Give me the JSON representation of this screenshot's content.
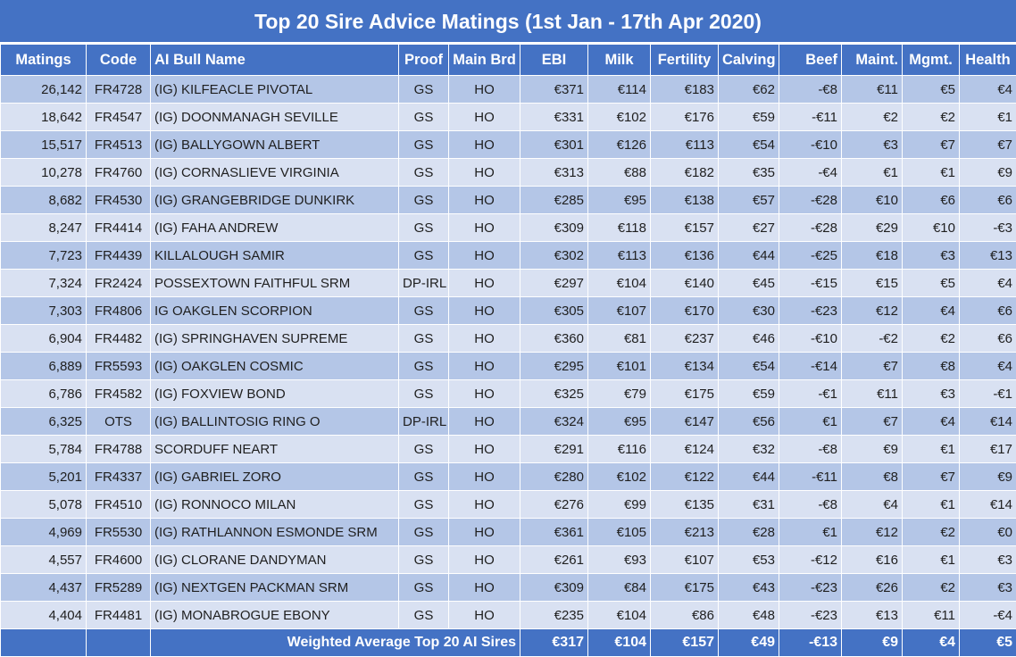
{
  "title": "Top 20 Sire Advice Matings (1st Jan - 17th Apr 2020)",
  "chart_data": {
    "type": "table",
    "columns": [
      "Matings",
      "Code",
      "AI Bull Name",
      "Proof",
      "Main Brd",
      "EBI",
      "Milk",
      "Fertility",
      "Calving",
      "Beef",
      "Maint.",
      "Mgmt.",
      "Health"
    ],
    "rows": [
      [
        "26,142",
        "FR4728",
        "(IG) KILFEACLE PIVOTAL",
        "GS",
        "HO",
        "€371",
        "€114",
        "€183",
        "€62",
        "-€8",
        "€11",
        "€5",
        "€4"
      ],
      [
        "18,642",
        "FR4547",
        "(IG) DOONMANAGH SEVILLE",
        "GS",
        "HO",
        "€331",
        "€102",
        "€176",
        "€59",
        "-€11",
        "€2",
        "€2",
        "€1"
      ],
      [
        "15,517",
        "FR4513",
        "(IG) BALLYGOWN ALBERT",
        "GS",
        "HO",
        "€301",
        "€126",
        "€113",
        "€54",
        "-€10",
        "€3",
        "€7",
        "€7"
      ],
      [
        "10,278",
        "FR4760",
        "(IG) CORNASLIEVE VIRGINIA",
        "GS",
        "HO",
        "€313",
        "€88",
        "€182",
        "€35",
        "-€4",
        "€1",
        "€1",
        "€9"
      ],
      [
        "8,682",
        "FR4530",
        "(IG) GRANGEBRIDGE DUNKIRK",
        "GS",
        "HO",
        "€285",
        "€95",
        "€138",
        "€57",
        "-€28",
        "€10",
        "€6",
        "€6"
      ],
      [
        "8,247",
        "FR4414",
        "(IG) FAHA ANDREW",
        "GS",
        "HO",
        "€309",
        "€118",
        "€157",
        "€27",
        "-€28",
        "€29",
        "€10",
        "-€3"
      ],
      [
        "7,723",
        "FR4439",
        "KILLALOUGH SAMIR",
        "GS",
        "HO",
        "€302",
        "€113",
        "€136",
        "€44",
        "-€25",
        "€18",
        "€3",
        "€13"
      ],
      [
        "7,324",
        "FR2424",
        "POSSEXTOWN FAITHFUL SRM",
        "DP-IRL",
        "HO",
        "€297",
        "€104",
        "€140",
        "€45",
        "-€15",
        "€15",
        "€5",
        "€4"
      ],
      [
        "7,303",
        "FR4806",
        "IG OAKGLEN SCORPION",
        "GS",
        "HO",
        "€305",
        "€107",
        "€170",
        "€30",
        "-€23",
        "€12",
        "€4",
        "€6"
      ],
      [
        "6,904",
        "FR4482",
        "(IG) SPRINGHAVEN SUPREME",
        "GS",
        "HO",
        "€360",
        "€81",
        "€237",
        "€46",
        "-€10",
        "-€2",
        "€2",
        "€6"
      ],
      [
        "6,889",
        "FR5593",
        "(IG) OAKGLEN COSMIC",
        "GS",
        "HO",
        "€295",
        "€101",
        "€134",
        "€54",
        "-€14",
        "€7",
        "€8",
        "€4"
      ],
      [
        "6,786",
        "FR4582",
        "(IG) FOXVIEW BOND",
        "GS",
        "HO",
        "€325",
        "€79",
        "€175",
        "€59",
        "-€1",
        "€11",
        "€3",
        "-€1"
      ],
      [
        "6,325",
        "OTS",
        "(IG) BALLINTOSIG RING O",
        "DP-IRL",
        "HO",
        "€324",
        "€95",
        "€147",
        "€56",
        "€1",
        "€7",
        "€4",
        "€14"
      ],
      [
        "5,784",
        "FR4788",
        "SCORDUFF NEART",
        "GS",
        "HO",
        "€291",
        "€116",
        "€124",
        "€32",
        "-€8",
        "€9",
        "€1",
        "€17"
      ],
      [
        "5,201",
        "FR4337",
        "(IG) GABRIEL ZORO",
        "GS",
        "HO",
        "€280",
        "€102",
        "€122",
        "€44",
        "-€11",
        "€8",
        "€7",
        "€9"
      ],
      [
        "5,078",
        "FR4510",
        "(IG) RONNOCO MILAN",
        "GS",
        "HO",
        "€276",
        "€99",
        "€135",
        "€31",
        "-€8",
        "€4",
        "€1",
        "€14"
      ],
      [
        "4,969",
        "FR5530",
        "(IG) RATHLANNON ESMONDE SRM",
        "GS",
        "HO",
        "€361",
        "€105",
        "€213",
        "€28",
        "€1",
        "€12",
        "€2",
        "€0"
      ],
      [
        "4,557",
        "FR4600",
        "(IG) CLORANE DANDYMAN",
        "GS",
        "HO",
        "€261",
        "€93",
        "€107",
        "€53",
        "-€12",
        "€16",
        "€1",
        "€3"
      ],
      [
        "4,437",
        "FR5289",
        "(IG) NEXTGEN PACKMAN SRM",
        "GS",
        "HO",
        "€309",
        "€84",
        "€175",
        "€43",
        "-€23",
        "€26",
        "€2",
        "€3"
      ],
      [
        "4,404",
        "FR4481",
        "(IG) MONABROGUE EBONY",
        "GS",
        "HO",
        "€235",
        "€104",
        "€86",
        "€48",
        "-€23",
        "€13",
        "€11",
        "-€4"
      ]
    ],
    "footer": {
      "label": "Weighted Average Top 20 AI Sires",
      "values": [
        "€317",
        "€104",
        "€157",
        "€49",
        "-€13",
        "€9",
        "€4",
        "€5"
      ]
    }
  }
}
